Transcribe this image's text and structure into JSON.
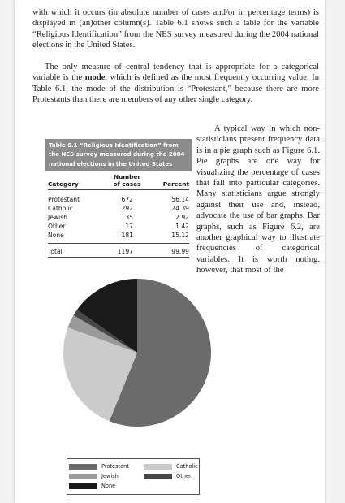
{
  "text": {
    "p1": "with which it occurs (in absolute number of cases and/or in percentage terms) is displayed in (an)other column(s). Table 6.1 shows such a table for the variable “Religious Identification” from the NES survey measured during the 2004 national elections in the United States.",
    "p2_a": "The only measure of central tendency that is appropriate for a categorical variable is the ",
    "p2_bold": "mode",
    "p2_b": ", which is defined as the most frequently occurring value. In Table 6.1, the mode of the distribution is “Protestant,” because there are more Protestants than there are members of any other single category.",
    "p3": "A typical way in which non-statisticians present frequency data is in a pie graph such as Figure 6.1. Pie graphs are one way for visualizing the percentage of cases that fall into particular categories. Many statisticians argue strongly against their use and, instead, advocate the use of bar graphs. Bar graphs, such as Figure 6.2, are another graphical way to illustrate frequencies of categorical variables. It is worth noting, however, that most of the"
  },
  "table": {
    "caption": "Table 6.1 “Religious Identification” from the NES survey measured during the 2004 national elections in the United States",
    "headers": {
      "category": "Category",
      "number_line1": "Number",
      "number_line2": "of cases",
      "percent": "Percent"
    },
    "rows": [
      {
        "category": "Protestant",
        "cases": "672",
        "percent": "56.14"
      },
      {
        "category": "Catholic",
        "cases": "292",
        "percent": "24.39"
      },
      {
        "category": "Jewish",
        "cases": "35",
        "percent": "2.92"
      },
      {
        "category": "Other",
        "cases": "17",
        "percent": "1.42"
      },
      {
        "category": "None",
        "cases": "181",
        "percent": "15.12"
      }
    ],
    "total": {
      "category": "Total",
      "cases": "1197",
      "percent": "99.99"
    }
  },
  "chart_data": {
    "type": "pie",
    "slices": [
      {
        "label": "Protestant",
        "value": 56.14,
        "color": "#6b6b6b"
      },
      {
        "label": "Catholic",
        "value": 24.39,
        "color": "#cbcbcb"
      },
      {
        "label": "Jewish",
        "value": 2.92,
        "color": "#9a9a9a"
      },
      {
        "label": "Other",
        "value": 1.42,
        "color": "#484848"
      },
      {
        "label": "None",
        "value": 15.12,
        "color": "#1a1a1a"
      }
    ],
    "legend": [
      "Protestant",
      "Catholic",
      "Jewish",
      "Other",
      "None"
    ],
    "legend_position": "bottom"
  }
}
